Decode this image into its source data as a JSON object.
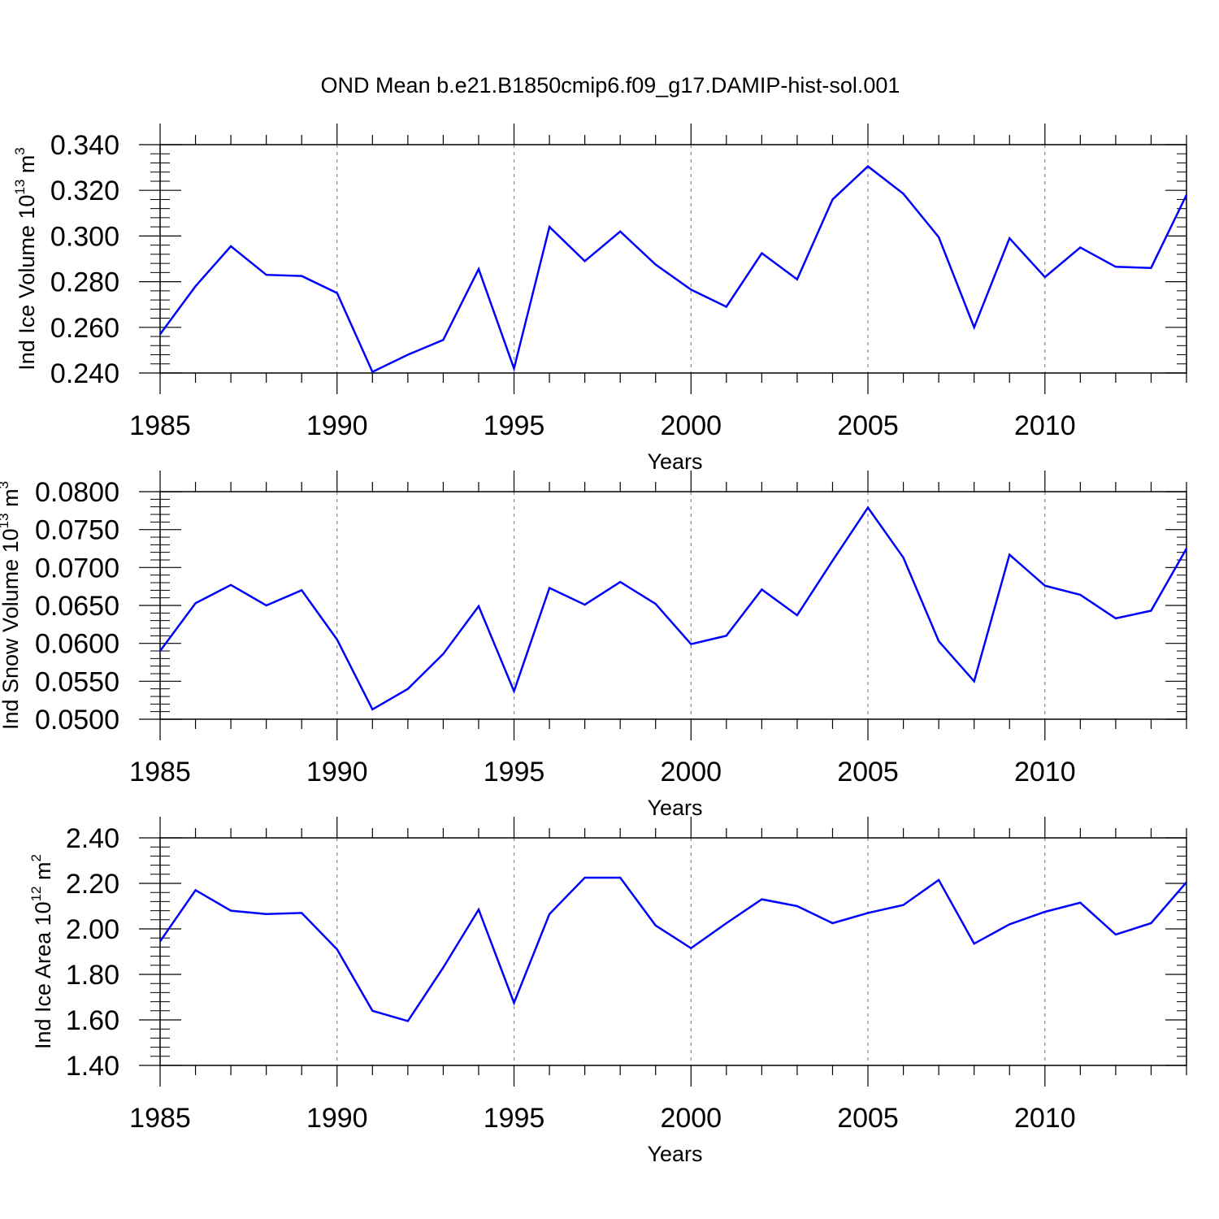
{
  "figure": {
    "title": "OND Mean b.e21.B1850cmip6.f09_g17.DAMIP-hist-sol.001"
  },
  "chart_data": [
    {
      "type": "line",
      "xlabel": "Years",
      "ylabel": {
        "text": "Ind Ice Volume 10",
        "exp": "13",
        "unit": " m",
        "unit_exp": "3"
      },
      "xlim": [
        1985,
        2014
      ],
      "ylim": [
        0.24,
        0.34
      ],
      "xticks": [
        "1985",
        "1990",
        "1995",
        "2000",
        "2005",
        "2010"
      ],
      "yticks": [
        "0.240",
        "0.260",
        "0.280",
        "0.300",
        "0.320",
        "0.340"
      ],
      "color": "#0000ff",
      "x": [
        1985,
        1986,
        1987,
        1988,
        1989,
        1990,
        1991,
        1992,
        1993,
        1994,
        1995,
        1996,
        1997,
        1998,
        1999,
        2000,
        2001,
        2002,
        2003,
        2004,
        2005,
        2006,
        2007,
        2008,
        2009,
        2010,
        2011,
        2012,
        2013,
        2014
      ],
      "values": [
        0.257,
        0.278,
        0.2955,
        0.283,
        0.2825,
        0.275,
        0.2405,
        0.248,
        0.2545,
        0.2855,
        0.242,
        0.304,
        0.289,
        0.302,
        0.2875,
        0.2765,
        0.269,
        0.2925,
        0.281,
        0.316,
        0.3305,
        0.3185,
        0.2995,
        0.26,
        0.299,
        0.282,
        0.295,
        0.2865,
        0.286,
        0.318
      ]
    },
    {
      "type": "line",
      "xlabel": "Years",
      "ylabel": {
        "text": "Ind Snow Volume 10",
        "exp": "13",
        "unit": " m",
        "unit_exp": "3"
      },
      "xlim": [
        1985,
        2014
      ],
      "ylim": [
        0.05,
        0.08
      ],
      "xticks": [
        "1985",
        "1990",
        "1995",
        "2000",
        "2005",
        "2010"
      ],
      "yticks": [
        "0.0500",
        "0.0550",
        "0.0600",
        "0.0650",
        "0.0700",
        "0.0750",
        "0.0800"
      ],
      "color": "#0000ff",
      "x": [
        1985,
        1986,
        1987,
        1988,
        1989,
        1990,
        1991,
        1992,
        1993,
        1994,
        1995,
        1996,
        1997,
        1998,
        1999,
        2000,
        2001,
        2002,
        2003,
        2004,
        2005,
        2006,
        2007,
        2008,
        2009,
        2010,
        2011,
        2012,
        2013,
        2014
      ],
      "values": [
        0.059,
        0.0653,
        0.0677,
        0.065,
        0.067,
        0.0605,
        0.0513,
        0.054,
        0.0586,
        0.0649,
        0.0537,
        0.0673,
        0.0651,
        0.0681,
        0.0652,
        0.0599,
        0.061,
        0.0671,
        0.0637,
        0.0709,
        0.0779,
        0.0713,
        0.0603,
        0.055,
        0.0717,
        0.0676,
        0.0664,
        0.0633,
        0.0643,
        0.0725
      ]
    },
    {
      "type": "line",
      "xlabel": "Years",
      "ylabel": {
        "text": "Ind Ice Area 10",
        "exp": "12",
        "unit": " m",
        "unit_exp": "2"
      },
      "xlim": [
        1985,
        2014
      ],
      "ylim": [
        1.4,
        2.4
      ],
      "xticks": [
        "1985",
        "1990",
        "1995",
        "2000",
        "2005",
        "2010"
      ],
      "yticks": [
        "1.40",
        "1.60",
        "1.80",
        "2.00",
        "2.20",
        "2.40"
      ],
      "color": "#0000ff",
      "x": [
        1985,
        1986,
        1987,
        1988,
        1989,
        1990,
        1991,
        1992,
        1993,
        1994,
        1995,
        1996,
        1997,
        1998,
        1999,
        2000,
        2001,
        2002,
        2003,
        2004,
        2005,
        2006,
        2007,
        2008,
        2009,
        2010,
        2011,
        2012,
        2013,
        2014
      ],
      "values": [
        1.945,
        2.17,
        2.08,
        2.065,
        2.07,
        1.91,
        1.64,
        1.595,
        1.83,
        2.085,
        1.675,
        2.065,
        2.225,
        2.225,
        2.015,
        1.915,
        2.025,
        2.13,
        2.1,
        2.025,
        2.07,
        2.105,
        2.215,
        1.935,
        2.02,
        2.075,
        2.115,
        1.975,
        2.025,
        2.205
      ]
    }
  ]
}
